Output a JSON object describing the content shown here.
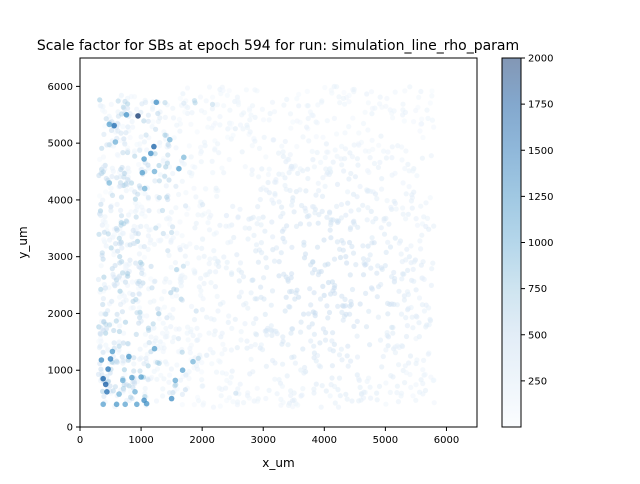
{
  "chart_data": {
    "type": "scatter",
    "title": "Scale factor for SBs at epoch 594 for run: simulation_line_rho_param",
    "xlabel": "x_um",
    "ylabel": "y_um",
    "xlim": [
      0,
      6500
    ],
    "ylim": [
      0,
      6500
    ],
    "xticks": [
      0,
      1000,
      2000,
      3000,
      4000,
      5000,
      6000
    ],
    "yticks": [
      0,
      1000,
      2000,
      3000,
      4000,
      5000,
      6000
    ],
    "grid": false,
    "colorbar": {
      "range": [
        0,
        2000
      ],
      "ticks": [
        250,
        500,
        750,
        1000,
        1250,
        1500,
        1750,
        2000
      ],
      "colormap": "Blues",
      "alpha": 0.5
    },
    "point_summary": "Dense cloud of low-value (light) points spanning x 300–5800, y 350–6000; higher-value (darker blue) points concentrated along the left edge (x 300–1800).",
    "highlighted_points": [
      {
        "x": 950,
        "y": 5480,
        "value": 2000
      },
      {
        "x": 560,
        "y": 5310,
        "value": 1550
      },
      {
        "x": 480,
        "y": 5330,
        "value": 1100
      },
      {
        "x": 760,
        "y": 5500,
        "value": 1250
      },
      {
        "x": 1250,
        "y": 5720,
        "value": 1300
      },
      {
        "x": 1210,
        "y": 4940,
        "value": 1650
      },
      {
        "x": 1050,
        "y": 4720,
        "value": 1200
      },
      {
        "x": 1160,
        "y": 4820,
        "value": 1300
      },
      {
        "x": 1020,
        "y": 4480,
        "value": 1150
      },
      {
        "x": 1220,
        "y": 4500,
        "value": 1000
      },
      {
        "x": 1060,
        "y": 4200,
        "value": 950
      },
      {
        "x": 1620,
        "y": 4550,
        "value": 1150
      },
      {
        "x": 580,
        "y": 5020,
        "value": 1000
      },
      {
        "x": 1700,
        "y": 4750,
        "value": 900
      },
      {
        "x": 1470,
        "y": 5060,
        "value": 950
      },
      {
        "x": 480,
        "y": 4300,
        "value": 900
      },
      {
        "x": 420,
        "y": 750,
        "value": 1700
      },
      {
        "x": 380,
        "y": 850,
        "value": 1650
      },
      {
        "x": 460,
        "y": 1020,
        "value": 1500
      },
      {
        "x": 500,
        "y": 1200,
        "value": 1400
      },
      {
        "x": 440,
        "y": 620,
        "value": 1550
      },
      {
        "x": 530,
        "y": 1330,
        "value": 1200
      },
      {
        "x": 350,
        "y": 1180,
        "value": 1300
      },
      {
        "x": 600,
        "y": 400,
        "value": 1200
      },
      {
        "x": 740,
        "y": 400,
        "value": 1100
      },
      {
        "x": 1050,
        "y": 470,
        "value": 1300
      },
      {
        "x": 1090,
        "y": 410,
        "value": 1250
      },
      {
        "x": 930,
        "y": 400,
        "value": 1150
      },
      {
        "x": 850,
        "y": 870,
        "value": 1200
      },
      {
        "x": 1000,
        "y": 880,
        "value": 1150
      },
      {
        "x": 800,
        "y": 1240,
        "value": 1250
      },
      {
        "x": 1220,
        "y": 1380,
        "value": 1150
      },
      {
        "x": 1680,
        "y": 1000,
        "value": 1100
      },
      {
        "x": 1560,
        "y": 820,
        "value": 1050
      },
      {
        "x": 1500,
        "y": 500,
        "value": 1300
      },
      {
        "x": 380,
        "y": 400,
        "value": 1100
      },
      {
        "x": 700,
        "y": 820,
        "value": 1000
      },
      {
        "x": 900,
        "y": 620,
        "value": 1000
      },
      {
        "x": 1850,
        "y": 1150,
        "value": 950
      },
      {
        "x": 640,
        "y": 580,
        "value": 950
      }
    ]
  }
}
